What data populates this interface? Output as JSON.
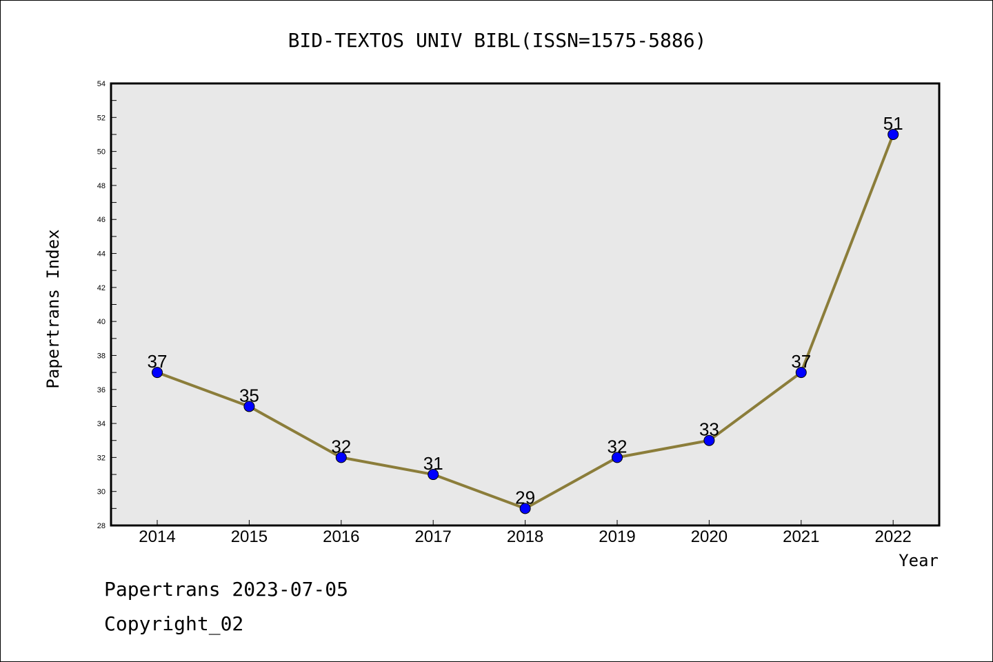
{
  "chart_data": {
    "type": "line",
    "title": "BID-TEXTOS UNIV BIBL(ISSN=1575-5886)",
    "xlabel": "Year",
    "ylabel": "Papertrans Index",
    "x": [
      "2014",
      "2015",
      "2016",
      "2017",
      "2018",
      "2019",
      "2020",
      "2021",
      "2022"
    ],
    "series": [
      {
        "values": [
          37,
          35,
          32,
          31,
          29,
          32,
          33,
          37,
          51
        ]
      }
    ],
    "ylim": [
      28,
      54
    ],
    "yticks": [
      "28",
      "30",
      "32",
      "34",
      "36",
      "38",
      "40",
      "42",
      "44",
      "46",
      "48",
      "50",
      "52",
      "54"
    ],
    "grid": false,
    "line_color": "#8b7d3a",
    "marker_color": "#0000ff",
    "plot_background": "#e8e8e8"
  },
  "footer": {
    "line1": "Papertrans 2023-07-05",
    "line2": "Copyright_02"
  }
}
